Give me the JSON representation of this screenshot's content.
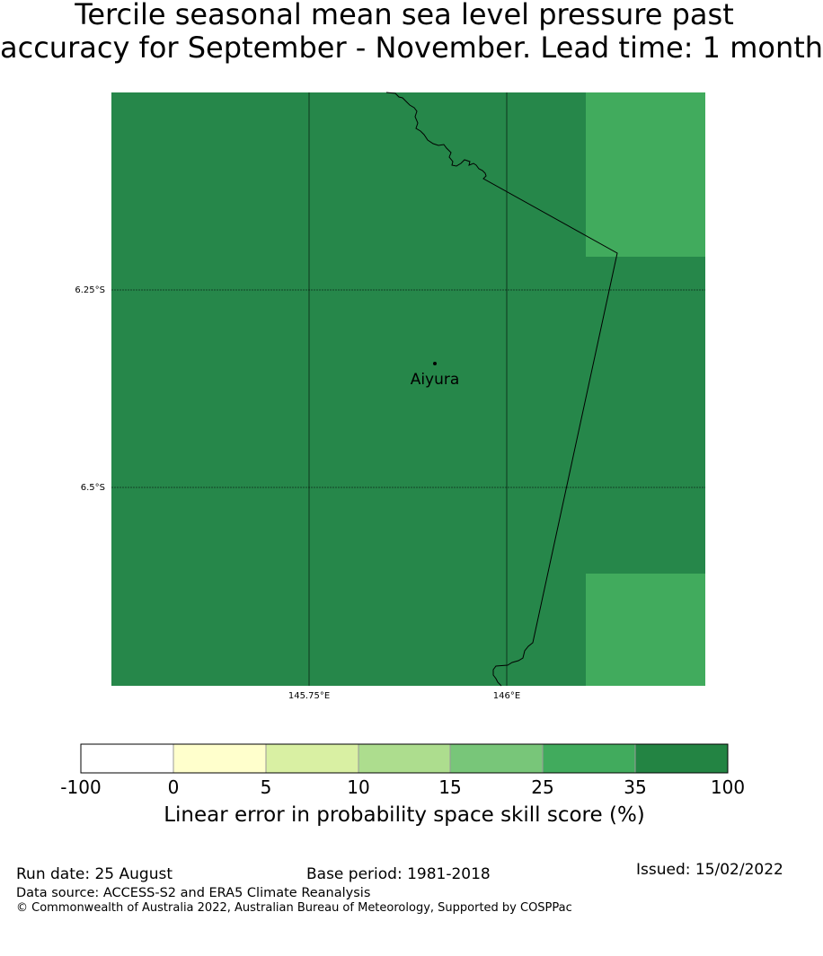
{
  "title": {
    "line1": "Tercile seasonal mean sea level pressure past",
    "line2": "accuracy for September - November. Lead time: 1 month"
  },
  "map": {
    "lat_ticks": [
      "6.25°S",
      "6.5°S"
    ],
    "lon_ticks": [
      "145.75°E",
      "146°E"
    ],
    "location": {
      "name": "Aiyura"
    },
    "colors": {
      "dark_cell": "#26874a",
      "light_cell": "#41ab5d"
    },
    "cell_category": {
      "main": "35 to 100",
      "corner_cells": "25 to 35"
    }
  },
  "colorbar": {
    "boundaries": [
      "-100",
      "0",
      "5",
      "10",
      "15",
      "25",
      "35",
      "100"
    ],
    "colors": [
      "#ffffff",
      "#ffffcc",
      "#d9f0a3",
      "#addd8e",
      "#78c679",
      "#41ab5d",
      "#238443"
    ],
    "title": "Linear error in probability space skill score (%)"
  },
  "footer": {
    "run_date": "Run date: 25 August",
    "base_period": "Base period: 1981-2018",
    "issued": "Issued: 15/02/2022",
    "data_source": "Data source: ACCESS-S2 and ERA5 Climate Reanalysis",
    "copyright": "© Commonwealth of Australia 2022, Australian Bureau of Meteorology, Supported by COSPPac"
  }
}
